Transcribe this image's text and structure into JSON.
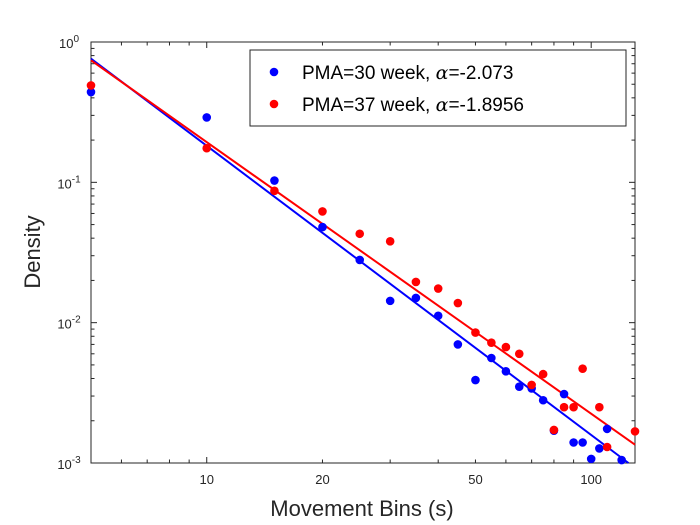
{
  "chart_data": {
    "type": "scatter",
    "xlabel": "Movement Bins (s)",
    "ylabel": "Density",
    "xscale": "log",
    "yscale": "log",
    "xlim": [
      5,
      130
    ],
    "ylim": [
      0.001,
      1
    ],
    "x_ticks": [
      {
        "value": 10,
        "label": "10"
      },
      {
        "value": 20,
        "label": "20"
      },
      {
        "value": 50,
        "label": "50"
      },
      {
        "value": 100,
        "label": "100"
      }
    ],
    "y_ticks": [
      {
        "value": 1,
        "base": "10",
        "exp": "0"
      },
      {
        "value": 0.1,
        "base": "10",
        "exp": "-1"
      },
      {
        "value": 0.01,
        "base": "10",
        "exp": "-2"
      },
      {
        "value": 0.001,
        "base": "10",
        "exp": "-3"
      }
    ],
    "grid": false,
    "legend_position": "top-right",
    "series": [
      {
        "name": "PMA=30 week, α=-2.073",
        "legend_prefix": "PMA=30 week, ",
        "legend_symbol": "α",
        "legend_value": "=-2.073",
        "color": "#0000ff",
        "points": [
          [
            5,
            0.44
          ],
          [
            10,
            0.29
          ],
          [
            15,
            0.103
          ],
          [
            20,
            0.048
          ],
          [
            25,
            0.028
          ],
          [
            30,
            0.0143
          ],
          [
            35,
            0.015
          ],
          [
            40,
            0.0112
          ],
          [
            45,
            0.007
          ],
          [
            50,
            0.0039
          ],
          [
            55,
            0.0056
          ],
          [
            60,
            0.0045
          ],
          [
            65,
            0.0035
          ],
          [
            70,
            0.0034
          ],
          [
            75,
            0.0028
          ],
          [
            80,
            0.0017
          ],
          [
            85,
            0.0031
          ],
          [
            90,
            0.0014
          ],
          [
            95,
            0.0014
          ],
          [
            100,
            0.00107
          ],
          [
            105,
            0.00127
          ],
          [
            110,
            0.00175
          ],
          [
            120,
            0.00105
          ]
        ],
        "fit_line": {
          "x": [
            5,
            125
          ],
          "y": [
            0.76,
            0.001
          ]
        }
      },
      {
        "name": "PMA=37 week, α=-1.8956",
        "legend_prefix": "PMA=37 week, ",
        "legend_symbol": "α",
        "legend_value": "=-1.8956",
        "color": "#ff0000",
        "points": [
          [
            5,
            0.49
          ],
          [
            10,
            0.175
          ],
          [
            15,
            0.087
          ],
          [
            20,
            0.062
          ],
          [
            25,
            0.043
          ],
          [
            30,
            0.038
          ],
          [
            35,
            0.0195
          ],
          [
            40,
            0.0175
          ],
          [
            45,
            0.0138
          ],
          [
            50,
            0.0085
          ],
          [
            55,
            0.0072
          ],
          [
            60,
            0.0067
          ],
          [
            65,
            0.006
          ],
          [
            70,
            0.0036
          ],
          [
            75,
            0.0043
          ],
          [
            80,
            0.00172
          ],
          [
            85,
            0.0025
          ],
          [
            90,
            0.0025
          ],
          [
            95,
            0.0047
          ],
          [
            105,
            0.0025
          ],
          [
            110,
            0.0013
          ],
          [
            130,
            0.00168
          ]
        ],
        "fit_line": {
          "x": [
            5,
            130
          ],
          "y": [
            0.74,
            0.00135
          ]
        }
      }
    ]
  }
}
